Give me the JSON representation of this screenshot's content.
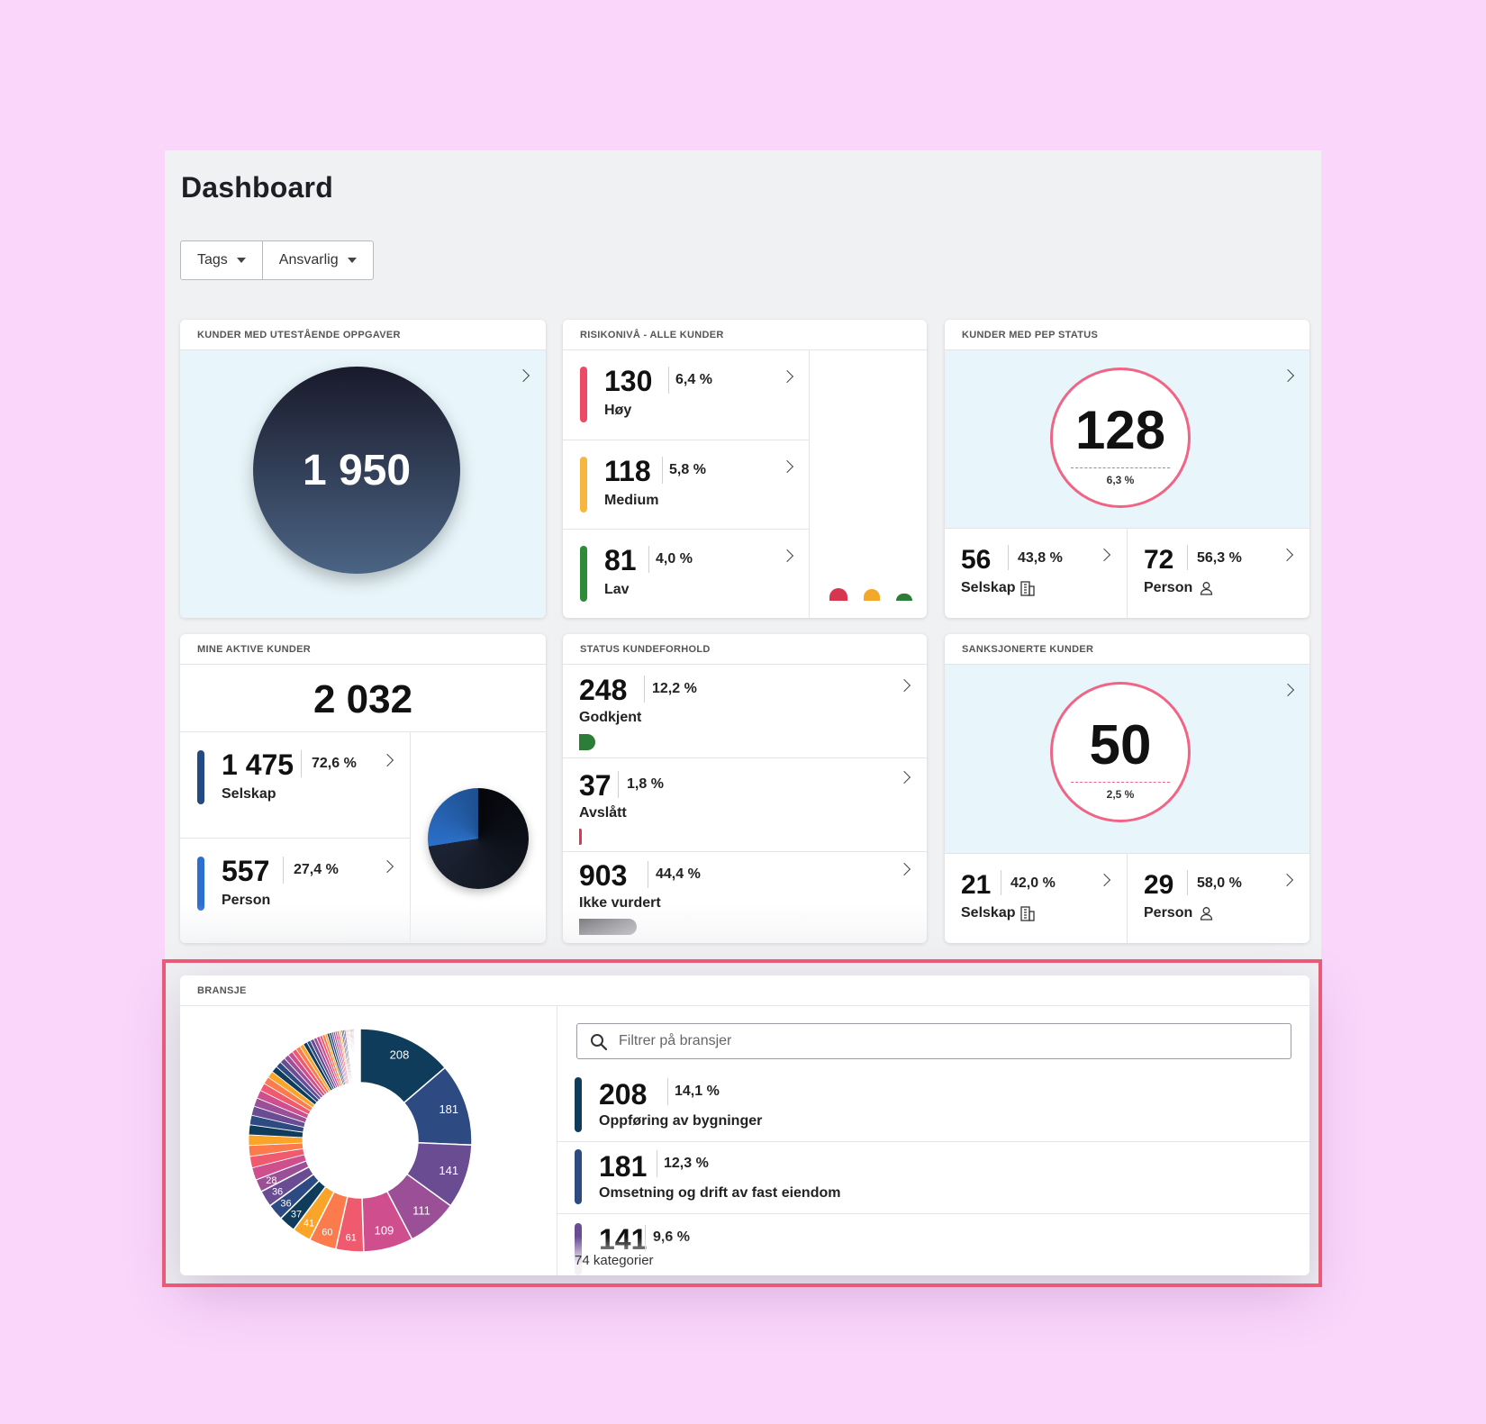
{
  "page": {
    "title": "Dashboard"
  },
  "filters": [
    {
      "label": "Tags"
    },
    {
      "label": "Ansvarlig"
    }
  ],
  "cards": {
    "outstanding": {
      "title": "KUNDER MED UTESTÅENDE OPPGAVER",
      "value": "1 950"
    },
    "risk": {
      "title": "RISIKONIVÅ - ALLE KUNDER",
      "rows": [
        {
          "value": "130",
          "pct": "6,4 %",
          "label": "Høy",
          "color": "#ee4a66"
        },
        {
          "value": "118",
          "pct": "5,8 %",
          "label": "Medium",
          "color": "#f8b63e"
        },
        {
          "value": "81",
          "pct": "4,0 %",
          "label": "Lav",
          "color": "#2f8a3a"
        }
      ],
      "dot_colors": [
        "#d8364f",
        "#f3a82c",
        "#2b7d37"
      ]
    },
    "pep": {
      "title": "KUNDER MED PEP STATUS",
      "value": "128",
      "pct": "6,3 %",
      "split": [
        {
          "value": "56",
          "pct": "43,8 %",
          "label": "Selskap",
          "icon": "building-icon"
        },
        {
          "value": "72",
          "pct": "56,3 %",
          "label": "Person",
          "icon": "person-icon"
        }
      ]
    },
    "active": {
      "title": "MINE AKTIVE KUNDER",
      "value": "2 032",
      "rows": [
        {
          "value": "1 475",
          "pct": "72,6 %",
          "label": "Selskap",
          "color": "#234a85"
        },
        {
          "value": "557",
          "pct": "27,4 %",
          "label": "Person",
          "color": "#2c6fd0"
        }
      ],
      "pie_fractions": [
        0.726,
        0.274
      ]
    },
    "status": {
      "title": "STATUS KUNDEFORHOLD",
      "rows": [
        {
          "value": "248",
          "pct": "12,2 %",
          "label": "Godkjent",
          "color": "#2b7d37",
          "fraction": 0.122
        },
        {
          "value": "37",
          "pct": "1,8 %",
          "label": "Avslått",
          "color": "#e0364f",
          "fraction": 0.018
        },
        {
          "value": "903",
          "pct": "44,4 %",
          "label": "Ikke vurdert",
          "color": "#6f6f74",
          "fraction": 0.444
        }
      ]
    },
    "sanctions": {
      "title": "SANKSJONERTE KUNDER",
      "value": "50",
      "pct": "2,5 %",
      "split": [
        {
          "value": "21",
          "pct": "42,0 %",
          "label": "Selskap",
          "icon": "building-icon"
        },
        {
          "value": "29",
          "pct": "58,0 %",
          "label": "Person",
          "icon": "person-icon"
        }
      ]
    },
    "industry": {
      "title": "BRANSJE",
      "search_placeholder": "Filtrer på bransjer",
      "rows": [
        {
          "value": "208",
          "pct": "14,1 %",
          "label": "Oppføring av bygninger",
          "color": "#0e3c5a"
        },
        {
          "value": "181",
          "pct": "12,3 %",
          "label": "Omsetning og drift av fast eiendom",
          "color": "#2d4a82"
        },
        {
          "value": "141",
          "pct": "9,6 %",
          "label": "",
          "color": "#6a4c93"
        }
      ],
      "footer": "74 kategorier",
      "donut_values": [
        208,
        181,
        141,
        111,
        109,
        61,
        60,
        41,
        37,
        36,
        36,
        28,
        27,
        25,
        24,
        23,
        22,
        21,
        20,
        19,
        18,
        17,
        16,
        15,
        14,
        13,
        12,
        11,
        11,
        10,
        10,
        9,
        9,
        8,
        8,
        7,
        7,
        6,
        6,
        5,
        5,
        5,
        4,
        4,
        4,
        4,
        3,
        3,
        3,
        3,
        3,
        2,
        2,
        2,
        2,
        2,
        2,
        2,
        2,
        2,
        1,
        1,
        1,
        1,
        1,
        1,
        1,
        1,
        1,
        1,
        1,
        1,
        1,
        1
      ],
      "donut_colors": [
        "#0e3c5a",
        "#2d4a82",
        "#6a4c93",
        "#9a4f97",
        "#cf4e8e",
        "#ef5a6f",
        "#fb7b4c",
        "#fba42a",
        "#0e3c5a",
        "#2d4a82",
        "#6a4c93",
        "#9a4f97",
        "#cf4e8e",
        "#ef5a6f",
        "#fb7b4c",
        "#fba42a"
      ]
    }
  }
}
